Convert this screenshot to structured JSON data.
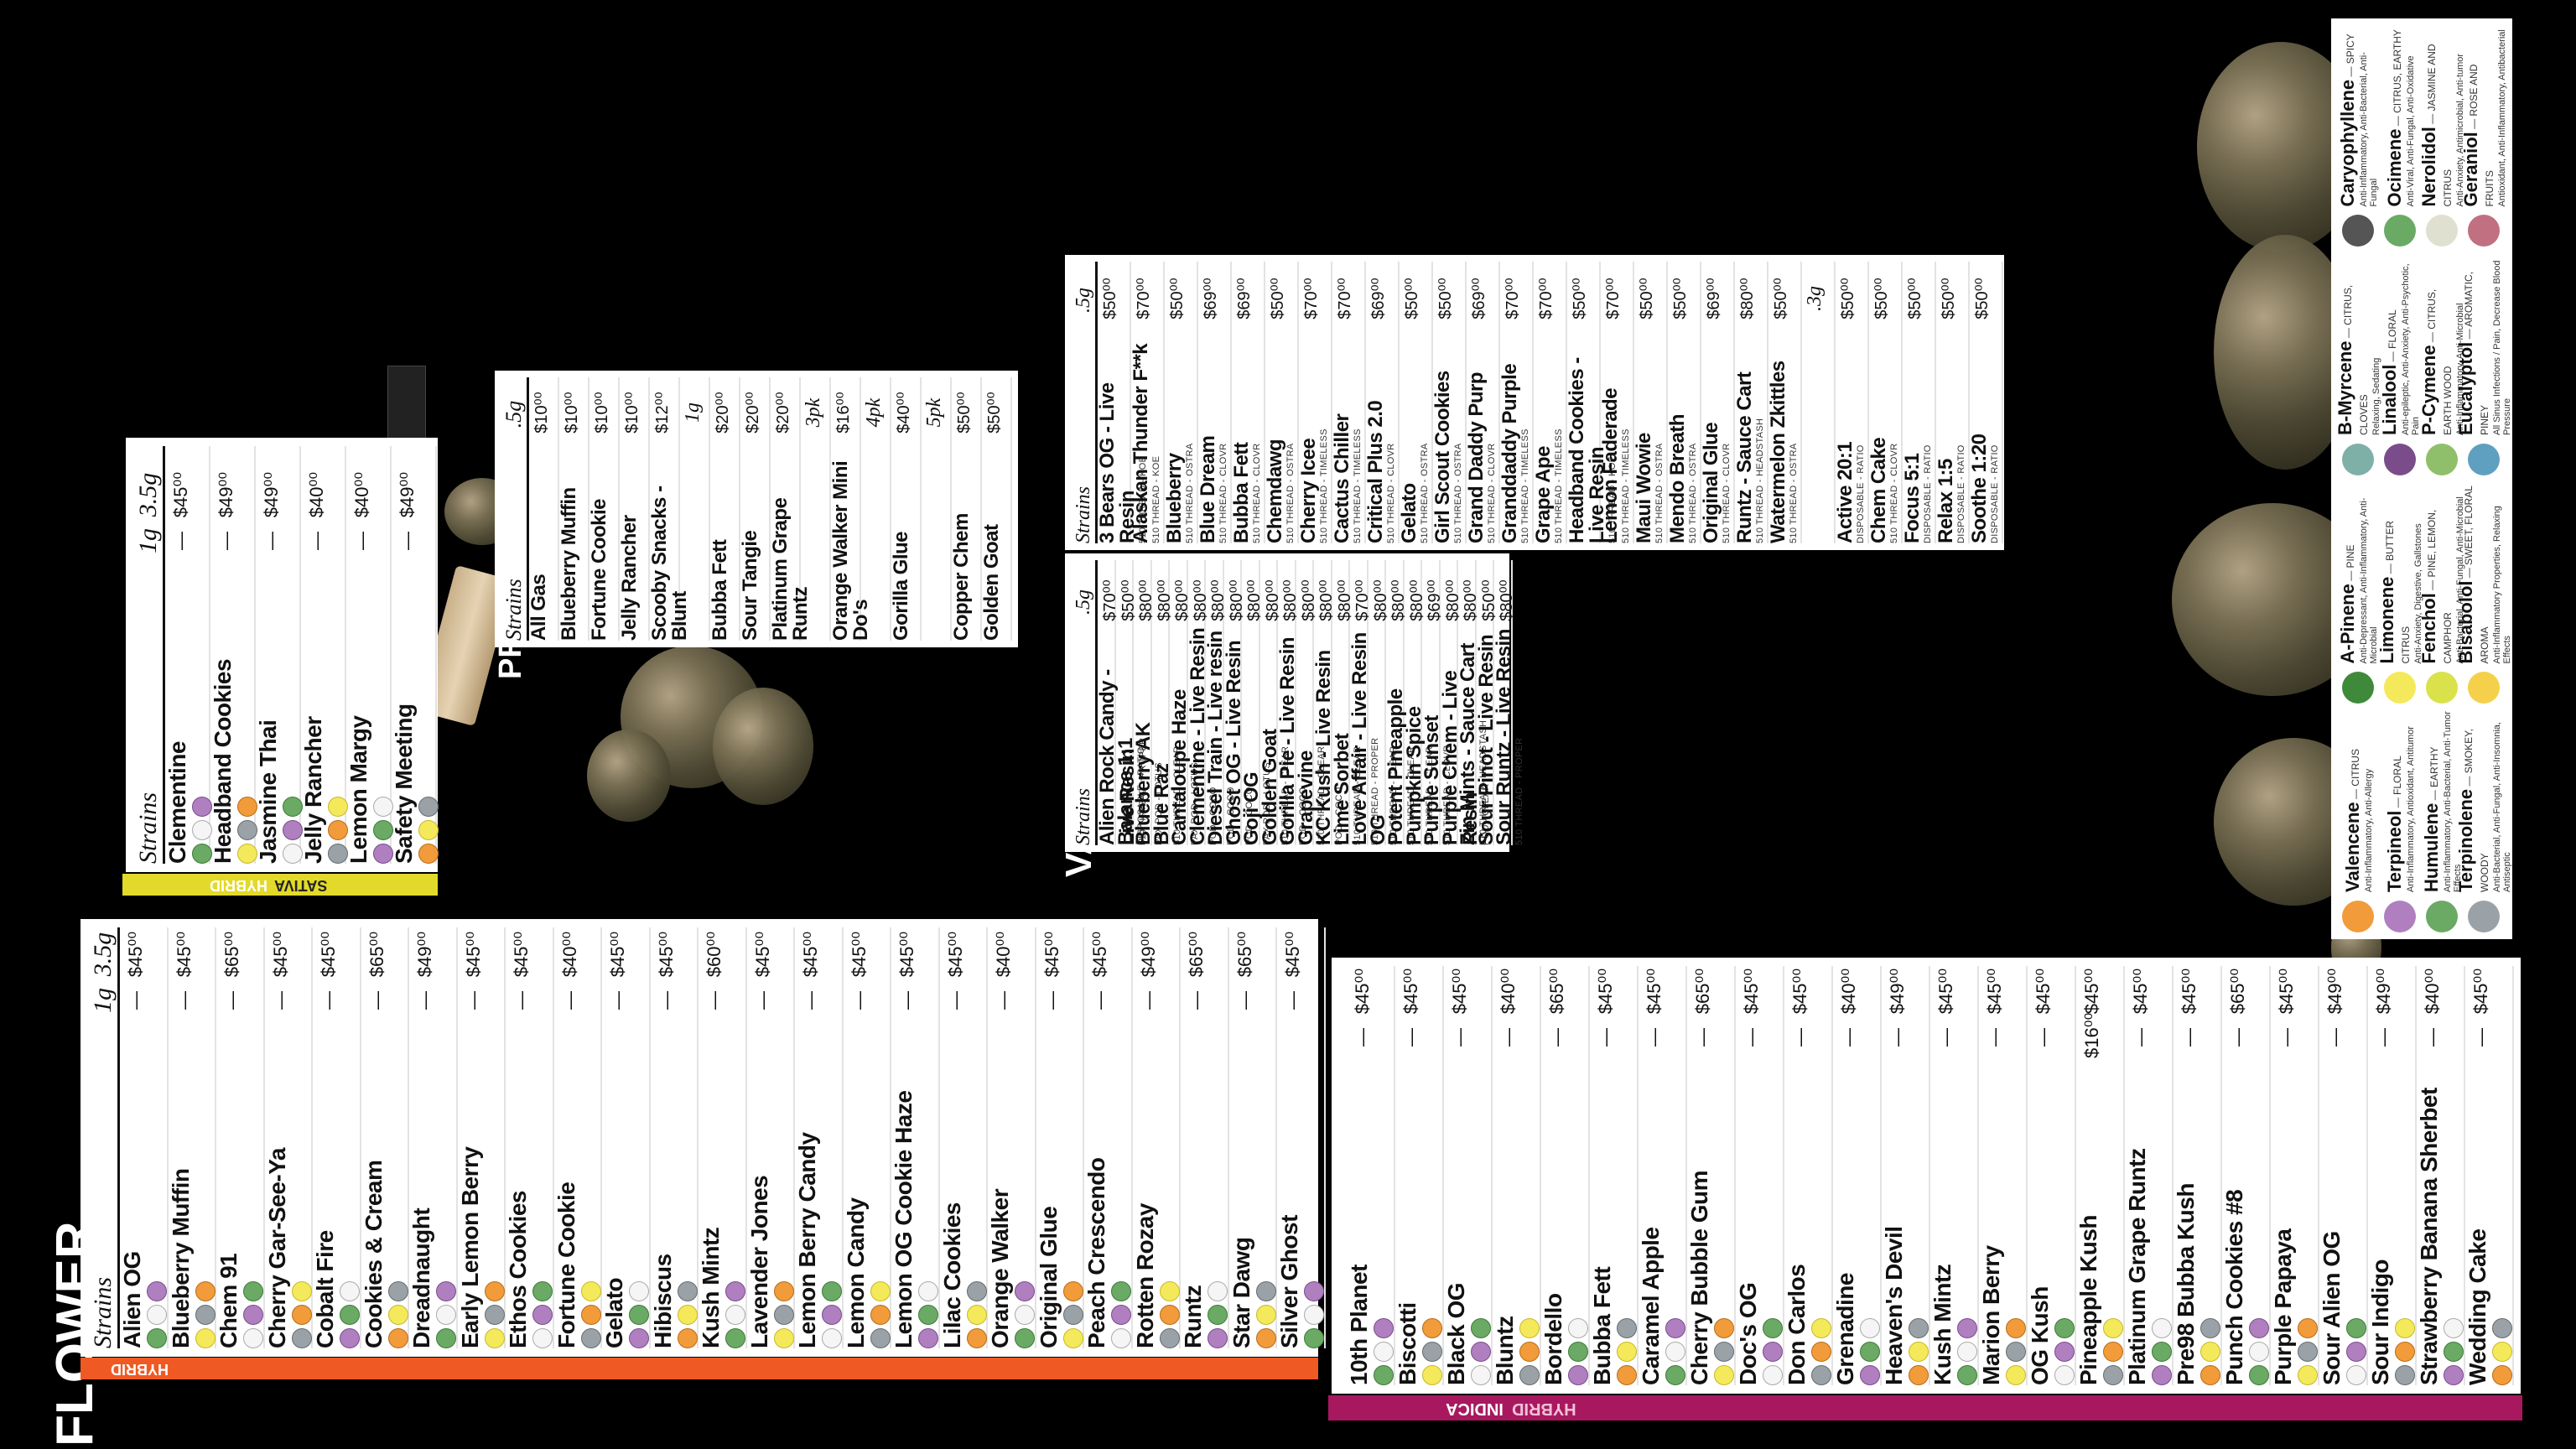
{
  "flower_title": "FLOWER",
  "vape_title": "VAPE",
  "preroll_title": "PREROLL",
  "hybrid": {
    "label": "HYBRID",
    "h_strains": "Strains",
    "h_1g": "1g",
    "h_35g": "3.5g",
    "rows": [
      {
        "name": "Alien OG",
        "p1": "—",
        "p35": "$45⁰⁰"
      },
      {
        "name": "Blueberry Muffin",
        "p1": "—",
        "p35": "$45⁰⁰"
      },
      {
        "name": "Chem 91",
        "p1": "—",
        "p35": "$65⁰⁰"
      },
      {
        "name": "Cherry Gar-See-Ya",
        "p1": "—",
        "p35": "$45⁰⁰"
      },
      {
        "name": "Cobalt Fire",
        "p1": "—",
        "p35": "$45⁰⁰"
      },
      {
        "name": "Cookies & Cream",
        "p1": "—",
        "p35": "$65⁰⁰"
      },
      {
        "name": "Dreadnaught",
        "p1": "—",
        "p35": "$49⁰⁰"
      },
      {
        "name": "Early Lemon Berry",
        "p1": "—",
        "p35": "$45⁰⁰"
      },
      {
        "name": "Ethos Cookies",
        "p1": "—",
        "p35": "$45⁰⁰"
      },
      {
        "name": "Fortune Cookie",
        "p1": "—",
        "p35": "$40⁰⁰"
      },
      {
        "name": "Gelato",
        "p1": "—",
        "p35": "$45⁰⁰"
      },
      {
        "name": "Hibiscus",
        "p1": "—",
        "p35": "$45⁰⁰"
      },
      {
        "name": "Kush Mintz",
        "p1": "—",
        "p35": "$60⁰⁰"
      },
      {
        "name": "Lavender Jones",
        "p1": "—",
        "p35": "$45⁰⁰"
      },
      {
        "name": "Lemon Berry Candy",
        "p1": "—",
        "p35": "$45⁰⁰"
      },
      {
        "name": "Lemon Candy",
        "p1": "—",
        "p35": "$45⁰⁰"
      },
      {
        "name": "Lemon OG Cookie Haze",
        "p1": "—",
        "p35": "$45⁰⁰"
      },
      {
        "name": "Lilac Cookies",
        "p1": "—",
        "p35": "$45⁰⁰"
      },
      {
        "name": "Orange Walker",
        "p1": "—",
        "p35": "$40⁰⁰"
      },
      {
        "name": "Original Glue",
        "p1": "—",
        "p35": "$45⁰⁰"
      },
      {
        "name": "Peach Crescendo",
        "p1": "—",
        "p35": "$45⁰⁰"
      },
      {
        "name": "Rotten Rozay",
        "p1": "—",
        "p35": "$49⁰⁰"
      },
      {
        "name": "Runtz",
        "p1": "—",
        "p35": "$65⁰⁰"
      },
      {
        "name": "Star Dawg",
        "p1": "—",
        "p35": "$65⁰⁰"
      },
      {
        "name": "Silver Ghost",
        "p1": "—",
        "p35": "$45⁰⁰"
      }
    ]
  },
  "indica": {
    "label_a": "INDICA",
    "label_b": "HYBRID",
    "rows": [
      {
        "name": "10th Planet",
        "p1": "—",
        "p35": "$45⁰⁰"
      },
      {
        "name": "Biscotti",
        "p1": "—",
        "p35": "$45⁰⁰"
      },
      {
        "name": "Black OG",
        "p1": "—",
        "p35": "$45⁰⁰"
      },
      {
        "name": "Bluntz",
        "p1": "—",
        "p35": "$40⁰⁰"
      },
      {
        "name": "Bordello",
        "p1": "—",
        "p35": "$65⁰⁰"
      },
      {
        "name": "Bubba Fett",
        "p1": "—",
        "p35": "$45⁰⁰"
      },
      {
        "name": "Caramel Apple",
        "p1": "—",
        "p35": "$45⁰⁰"
      },
      {
        "name": "Cherry Bubble Gum",
        "p1": "—",
        "p35": "$65⁰⁰"
      },
      {
        "name": "Doc's OG",
        "p1": "—",
        "p35": "$45⁰⁰"
      },
      {
        "name": "Don Carlos",
        "p1": "—",
        "p35": "$45⁰⁰"
      },
      {
        "name": "Grenadine",
        "p1": "—",
        "p35": "$40⁰⁰"
      },
      {
        "name": "Heaven's Devil",
        "p1": "—",
        "p35": "$49⁰⁰"
      },
      {
        "name": "Kush Mintz",
        "p1": "—",
        "p35": "$45⁰⁰"
      },
      {
        "name": "Marion Berry",
        "p1": "—",
        "p35": "$45⁰⁰"
      },
      {
        "name": "OG Kush",
        "p1": "—",
        "p35": "$45⁰⁰"
      },
      {
        "name": "Pineapple Kush",
        "p1": "$16⁰⁰",
        "p35": "$45⁰⁰"
      },
      {
        "name": "Platinum Grape Runtz",
        "p1": "—",
        "p35": "$45⁰⁰"
      },
      {
        "name": "Pre98 Bubba Kush",
        "p1": "—",
        "p35": "$45⁰⁰"
      },
      {
        "name": "Punch Cookies #8",
        "p1": "—",
        "p35": "$65⁰⁰"
      },
      {
        "name": "Purple Papaya",
        "p1": "—",
        "p35": "$45⁰⁰"
      },
      {
        "name": "Sour Alien OG",
        "p1": "—",
        "p35": "$49⁰⁰"
      },
      {
        "name": "Sour Indigo",
        "p1": "—",
        "p35": "$49⁰⁰"
      },
      {
        "name": "Strawberry Banana Sherbet",
        "p1": "—",
        "p35": "$40⁰⁰"
      },
      {
        "name": "Wedding Cake",
        "p1": "—",
        "p35": "$45⁰⁰"
      }
    ]
  },
  "sativa": {
    "label_a": "SATIVA",
    "label_b": "HYBRID",
    "h_strains": "Strains",
    "h_1g": "1g",
    "h_35g": "3.5g",
    "rows": [
      {
        "name": "Clementine",
        "p1": "—",
        "p35": "$45⁰⁰"
      },
      {
        "name": "Headband Cookies",
        "p1": "—",
        "p35": "$49⁰⁰"
      },
      {
        "name": "Jasmine Thai",
        "p1": "—",
        "p35": "$49⁰⁰"
      },
      {
        "name": "Jelly Rancher",
        "p1": "—",
        "p35": "$40⁰⁰"
      },
      {
        "name": "Lemon Margy",
        "p1": "—",
        "p35": "$40⁰⁰"
      },
      {
        "name": "Safety Meeting",
        "p1": "—",
        "p35": "$49⁰⁰"
      }
    ]
  },
  "preroll": {
    "h_strains": "Strains",
    "h_5g": ".5g",
    "rows": [
      {
        "name": "All Gas",
        "price": "$10⁰⁰"
      },
      {
        "name": "Blueberry Muffin",
        "price": "$10⁰⁰"
      },
      {
        "name": "Fortune Cookie",
        "price": "$10⁰⁰"
      },
      {
        "name": "Jelly Rancher",
        "price": "$10⁰⁰"
      },
      {
        "name": "Scooby Snacks - Blunt",
        "price": "$12⁰⁰"
      },
      {
        "name": "",
        "price": "1g"
      },
      {
        "name": "Bubba Fett",
        "price": "$20⁰⁰"
      },
      {
        "name": "Sour Tangie",
        "price": "$20⁰⁰"
      },
      {
        "name": "Platinum Grape Runtz",
        "price": "$20⁰⁰"
      },
      {
        "name": "",
        "price": "3pk"
      },
      {
        "name": "Orange Walker Mini Do's",
        "price": "$16⁰⁰"
      },
      {
        "name": "",
        "price": "4pk"
      },
      {
        "name": "Gorilla Glue",
        "price": "$40⁰⁰"
      },
      {
        "name": "",
        "price": "5pk"
      },
      {
        "name": "Copper Chem",
        "price": "$50⁰⁰"
      },
      {
        "name": "Golden Goat",
        "price": "$50⁰⁰"
      }
    ]
  },
  "vape_left": {
    "h_strains": "Strains",
    "h_5g": ".5g",
    "rows": [
      {
        "name": "Alien Rock Candy - Live Resin",
        "sub": "510 THREAD - PROPER",
        "price": "$70⁰⁰"
      },
      {
        "name": "Balance 1:1",
        "sub": "DISPOSABLE - RATIO",
        "price": "$50⁰⁰"
      },
      {
        "name": "Blueberry AK",
        "sub": "PAX POD - LOTUS",
        "price": "$80⁰⁰"
      },
      {
        "name": "Blue Raz",
        "sub": "510 THREAD - CLEAR",
        "price": "$80⁰⁰"
      },
      {
        "name": "Cantaloupe Haze",
        "sub": "PAX POD - LOTUS",
        "price": "$80⁰⁰"
      },
      {
        "name": "Clementine - Live Resin",
        "sub": "POD - COCO",
        "price": "$80⁰⁰"
      },
      {
        "name": "Diesel Train - Live resin",
        "sub": "POD - COCO",
        "price": "$80⁰⁰"
      },
      {
        "name": "Ghost OG - Live Resin",
        "sub": "POD - COCO",
        "price": "$80⁰⁰"
      },
      {
        "name": "Goji OG",
        "sub": "PAX POD - LOTUS",
        "price": "$80⁰⁰"
      },
      {
        "name": "Golden Goat",
        "sub": "510 THREAD - CLEAR",
        "price": "$80⁰⁰"
      },
      {
        "name": "Gorilla Pie - Live Resin",
        "sub": "POD - COCO",
        "price": "$80⁰⁰"
      },
      {
        "name": "Grapevine",
        "sub": "510 THREAD - CLEAR",
        "price": "$80⁰⁰"
      },
      {
        "name": "KC Kush - Live Resin",
        "sub": "POD - COCO",
        "price": "$80⁰⁰"
      },
      {
        "name": "Lime Sorbet",
        "sub": "510 THREAD - CLEAR",
        "price": "$80⁰⁰"
      },
      {
        "name": "Love Affair - Live Resin",
        "sub": "510 THREAD - PROPER",
        "price": "$70⁰⁰"
      },
      {
        "name": "OG",
        "sub": "510 THREAD - CLEAR",
        "price": "$80⁰⁰"
      },
      {
        "name": "Potent Pineapple",
        "sub": "510 THREAD - CLEAR",
        "price": "$80⁰⁰"
      },
      {
        "name": "Pumpkin Spice",
        "sub": "510 THREAD - CLEAR",
        "price": "$80⁰⁰"
      },
      {
        "name": "Purple Sunset",
        "sub": "510 THREAD - CLOVR",
        "price": "$69⁰⁰"
      },
      {
        "name": "Purple Chem - Live Resin",
        "sub": "POD - CLEAR",
        "price": "$80⁰⁰"
      },
      {
        "name": "Zin Mints - Sauce Cart",
        "sub": "510 THREAD - HEADSTASH",
        "price": "$80⁰⁰"
      },
      {
        "name": "Sour Pinot - Live Resin",
        "sub": "",
        "price": "$50⁰⁰"
      },
      {
        "name": "Sour Runtz - Live Resin",
        "sub": "510 THREAD - PROPER",
        "price": "$80⁰⁰"
      }
    ]
  },
  "vape_right": {
    "h_strains": "Strains",
    "h_5g": ".5g",
    "h_3g": ".3g",
    "rows": [
      {
        "name": "3 Bears OG - Live Resin",
        "sub": "510 THREAD - KOE",
        "price": "$50⁰⁰"
      },
      {
        "name": "Alaskan Thunder F**k",
        "sub": "510 THREAD - KOE",
        "price": "$70⁰⁰"
      },
      {
        "name": "Blueberry",
        "sub": "510 THREAD - OSTRA",
        "price": "$50⁰⁰"
      },
      {
        "name": "Blue Dream",
        "sub": "510 THREAD - CLOVR",
        "price": "$69⁰⁰"
      },
      {
        "name": "Bubba Fett",
        "sub": "510 THREAD - CLOVR",
        "price": "$69⁰⁰"
      },
      {
        "name": "Chemdawg",
        "sub": "510 THREAD - OSTRA",
        "price": "$50⁰⁰"
      },
      {
        "name": "Cherry Icee",
        "sub": "510 THREAD - TIMELESS",
        "price": "$70⁰⁰"
      },
      {
        "name": "Cactus Chiller",
        "sub": "510 THREAD - TIMELESS",
        "price": "$70⁰⁰"
      },
      {
        "name": "Critical Plus 2.0",
        "sub": "510 THREAD - CLOVR",
        "price": "$69⁰⁰"
      },
      {
        "name": "Gelato",
        "sub": "510 THREAD - OSTRA",
        "price": "$50⁰⁰"
      },
      {
        "name": "Girl Scout Cookies",
        "sub": "510 THREAD - OSTRA",
        "price": "$50⁰⁰"
      },
      {
        "name": "Grand Daddy Purp",
        "sub": "510 THREAD - CLOVR",
        "price": "$69⁰⁰"
      },
      {
        "name": "Granddaddy Purple",
        "sub": "510 THREAD - TIMELESS",
        "price": "$70⁰⁰"
      },
      {
        "name": "Grape Ape",
        "sub": "510 THREAD - TIMELESS",
        "price": "$70⁰⁰"
      },
      {
        "name": "Headband Cookies - Live Resin",
        "sub": "510 THREAD - KOE",
        "price": "$50⁰⁰"
      },
      {
        "name": "Lemon Faderade",
        "sub": "510 THREAD - TIMELESS",
        "price": "$70⁰⁰"
      },
      {
        "name": "Maui Wowie",
        "sub": "510 THREAD - OSTRA",
        "price": "$50⁰⁰"
      },
      {
        "name": "Mendo Breath",
        "sub": "510 THREAD - OSTRA",
        "price": "$50⁰⁰"
      },
      {
        "name": "Original Glue",
        "sub": "510 THREAD - CLOVR",
        "price": "$69⁰⁰"
      },
      {
        "name": "Runtz - Sauce Cart",
        "sub": "510 THREAD - HEADSTASH",
        "price": "$80⁰⁰"
      },
      {
        "name": "Watermelon Zkittles",
        "sub": "510 THREAD - OSTRA",
        "price": "$50⁰⁰"
      },
      {
        "name": "",
        "sub": "",
        "price": ".3g"
      },
      {
        "name": "Active 20:1",
        "sub": "DISPOSABLE - RATIO",
        "price": "$50⁰⁰"
      },
      {
        "name": "Chem Cake",
        "sub": "510 THREAD - CLOVR",
        "price": "$50⁰⁰"
      },
      {
        "name": "Focus 5:1",
        "sub": "DISPOSABLE - RATIO",
        "price": "$50⁰⁰"
      },
      {
        "name": "Relax 1:5",
        "sub": "DISPOSABLE - RATIO",
        "price": "$50⁰⁰"
      },
      {
        "name": "Soothe 1:20",
        "sub": "DISPOSABLE - RATIO",
        "price": "$50⁰⁰"
      }
    ]
  },
  "terpenes": [
    {
      "name": "Valencene",
      "note": "— CITRUS",
      "effects": "Anti-Inflammatory, Anti-Allergy",
      "color": "#f19b3a"
    },
    {
      "name": "Terpineol",
      "note": "— FLORAL",
      "effects": "Anti-Inflammatory, Antioxidant, Antitumor",
      "color": "#b07fc0"
    },
    {
      "name": "Humulene",
      "note": "— EARTHY",
      "effects": "Anti-Inflammatory, Anti-Bacterial, Anti-Tumor Effects",
      "color": "#6aaa64"
    },
    {
      "name": "Terpinolene",
      "note": "— SMOKEY, WOODY",
      "effects": "Anti-Bacterial, Anti-Fungal, Anti-Insomnia, Antiseptic",
      "color": "#9aa2a8"
    },
    {
      "name": "A-Pinene",
      "note": "— PINE",
      "effects": "Anti-Depressant, Anti-Inflammatory, Anti-Microbial",
      "color": "#3f8a3a"
    },
    {
      "name": "Limonene",
      "note": "— BUTTER CITRUS",
      "effects": "Anti-Anxiety, Digestive, Gallstones",
      "color": "#f4e95a"
    },
    {
      "name": "Fenchol",
      "note": "— PINE, LEMON, CAMPHOR",
      "effects": "Anti-Bacterial, Anti-Fungal, Anti-Microbial",
      "color": "#d9e24a"
    },
    {
      "name": "Bisabolol",
      "note": "— SWEET, FLORAL AROMA",
      "effects": "Anti-Inflammatory Properties, Relaxing Effects",
      "color": "#f5d04a"
    },
    {
      "name": "B-Myrcene",
      "note": "— CITRUS, CLOVES",
      "effects": "Relaxing, Sedating",
      "color": "#7fb0a8"
    },
    {
      "name": "Linalool",
      "note": "— FLORAL",
      "effects": "Anti-epileptic, Anti-Anxiety, Anti-Psychotic, Pain",
      "color": "#7a4c8a"
    },
    {
      "name": "P-Cymene",
      "note": "— CITRUS, EARTH WOOD",
      "effects": "Anti-Inflammatory, Anti-Microbial",
      "color": "#8fbf6a"
    },
    {
      "name": "Eucalyptol",
      "note": "— AROMATIC, PINEY",
      "effects": "All Sinus Infections / Pain, Decrease Blood Pressure",
      "color": "#5fa0c0"
    },
    {
      "name": "Caryophyllene",
      "note": "— SPICY",
      "effects": "Anti-Inflammatory, Anti-Bacterial, Anti-Fungal",
      "color": "#555555"
    },
    {
      "name": "Ocimene",
      "note": "— CITRUS, EARTHY",
      "effects": "Anti-Viral, Anti-Fungal, Anti-Oxidative",
      "color": "#6aaa64"
    },
    {
      "name": "Nerolidol",
      "note": "— JASMINE AND CITRUS",
      "effects": "Anti-Anxiety, Antimicrobial, Anti-tumor",
      "color": "#e0e0d0"
    },
    {
      "name": "Geraniol",
      "note": "— ROSE AND FRUITS",
      "effects": "Antioxidant, Anti-Inflammatory, Antibacterial",
      "color": "#c07080"
    }
  ],
  "colors": {
    "hybrid_bar": "#ef5a24",
    "indica_bar": "#a8185f",
    "sativa_bar": "#e3d92a"
  }
}
